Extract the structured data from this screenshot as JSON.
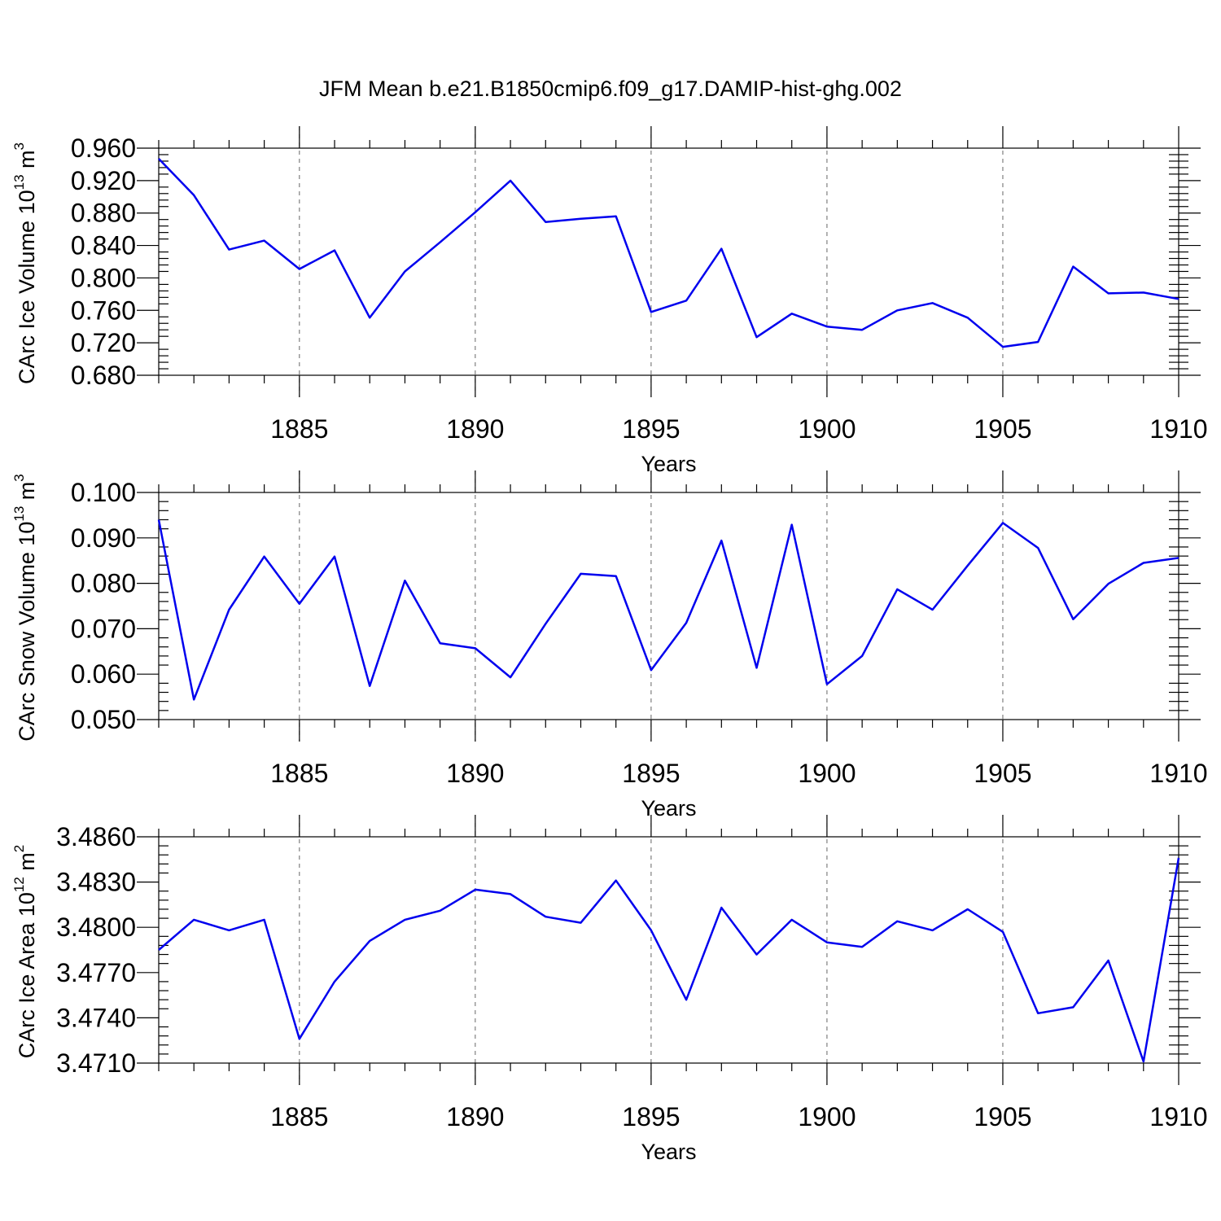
{
  "title": "JFM Mean b.e21.B1850cmip6.f09_g17.DAMIP-hist-ghg.002",
  "colors": {
    "line": "#0000ee",
    "axis": "#000000",
    "grid": "#666666"
  },
  "chart_data": [
    {
      "type": "line",
      "id": "ice-volume",
      "ylabel": {
        "text": "CArc Ice Volume 10",
        "exp": "13",
        "unit": "m",
        "unit_exp": "3"
      },
      "xlabel": "Years",
      "xlim": [
        1881,
        1910
      ],
      "ylim": [
        0.68,
        0.96
      ],
      "yticks": [
        "0.680",
        "0.720",
        "0.760",
        "0.800",
        "0.840",
        "0.880",
        "0.920",
        "0.960"
      ],
      "xticks": [
        "1885",
        "1890",
        "1895",
        "1900",
        "1905",
        "1910"
      ],
      "x": [
        1881,
        1882,
        1883,
        1884,
        1885,
        1886,
        1887,
        1888,
        1889,
        1890,
        1891,
        1892,
        1893,
        1894,
        1895,
        1896,
        1897,
        1898,
        1899,
        1900,
        1901,
        1902,
        1903,
        1904,
        1905,
        1906,
        1907,
        1908,
        1909,
        1910
      ],
      "values": [
        0.947,
        0.902,
        0.835,
        0.846,
        0.811,
        0.834,
        0.751,
        0.808,
        0.844,
        0.881,
        0.92,
        0.869,
        0.873,
        0.876,
        0.758,
        0.772,
        0.836,
        0.727,
        0.756,
        0.74,
        0.736,
        0.76,
        0.769,
        0.751,
        0.715,
        0.721,
        0.814,
        0.781,
        0.782,
        0.774
      ]
    },
    {
      "type": "line",
      "id": "snow-volume",
      "ylabel": {
        "text": "CArc Snow Volume 10",
        "exp": "13",
        "unit": "m",
        "unit_exp": "3"
      },
      "xlabel": "Years",
      "xlim": [
        1881,
        1910
      ],
      "ylim": [
        0.05,
        0.1
      ],
      "yticks": [
        "0.050",
        "0.060",
        "0.070",
        "0.080",
        "0.090",
        "0.100"
      ],
      "xticks": [
        "1885",
        "1890",
        "1895",
        "1900",
        "1905",
        "1910"
      ],
      "x": [
        1881,
        1882,
        1883,
        1884,
        1885,
        1886,
        1887,
        1888,
        1889,
        1890,
        1891,
        1892,
        1893,
        1894,
        1895,
        1896,
        1897,
        1898,
        1899,
        1900,
        1901,
        1902,
        1903,
        1904,
        1905,
        1906,
        1907,
        1908,
        1909,
        1910
      ],
      "values": [
        0.094,
        0.0544,
        0.0742,
        0.0859,
        0.0755,
        0.0859,
        0.0574,
        0.0806,
        0.0668,
        0.0657,
        0.0593,
        0.0711,
        0.0821,
        0.0816,
        0.0609,
        0.0713,
        0.0894,
        0.0614,
        0.0929,
        0.0578,
        0.064,
        0.0787,
        0.0742,
        0.0839,
        0.0933,
        0.0878,
        0.0721,
        0.0799,
        0.0845,
        0.0856
      ]
    },
    {
      "type": "line",
      "id": "ice-area",
      "ylabel": {
        "text": "CArc Ice Area 10",
        "exp": "12",
        "unit": "m",
        "unit_exp": "2"
      },
      "xlabel": "Years",
      "xlim": [
        1881,
        1910
      ],
      "ylim": [
        3.471,
        3.486
      ],
      "yticks": [
        "3.4710",
        "3.4740",
        "3.4770",
        "3.4800",
        "3.4830",
        "3.4860"
      ],
      "xticks": [
        "1885",
        "1890",
        "1895",
        "1900",
        "1905",
        "1910"
      ],
      "x": [
        1881,
        1882,
        1883,
        1884,
        1885,
        1886,
        1887,
        1888,
        1889,
        1890,
        1891,
        1892,
        1893,
        1894,
        1895,
        1896,
        1897,
        1898,
        1899,
        1900,
        1901,
        1902,
        1903,
        1904,
        1905,
        1906,
        1907,
        1908,
        1909,
        1910
      ],
      "values": [
        3.4785,
        3.4805,
        3.4798,
        3.4805,
        3.4726,
        3.4764,
        3.4791,
        3.4805,
        3.4811,
        3.4825,
        3.4822,
        3.4807,
        3.4803,
        3.4831,
        3.4798,
        3.4752,
        3.4813,
        3.4782,
        3.4805,
        3.479,
        3.4787,
        3.4804,
        3.4798,
        3.4812,
        3.4797,
        3.4743,
        3.4747,
        3.4778,
        3.4711,
        3.4846
      ]
    }
  ]
}
